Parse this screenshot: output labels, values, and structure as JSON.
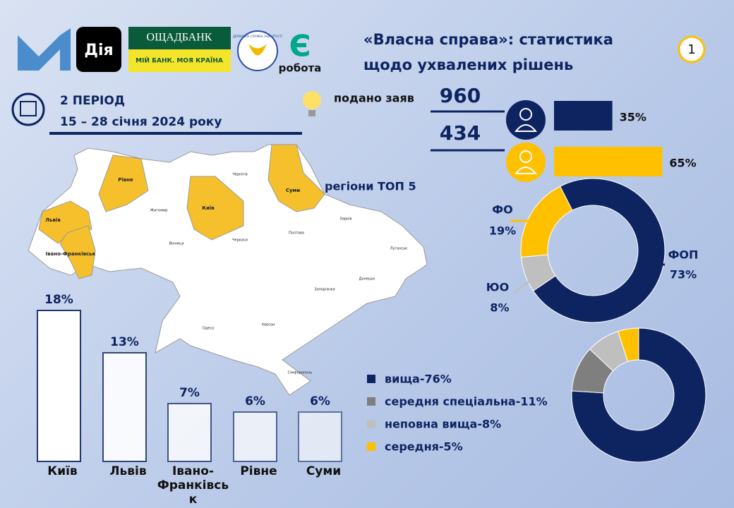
{
  "header": {
    "title": "«Власна справа»: статистика щодо ухвалених рішень",
    "page": "1",
    "logos": {
      "diia": "Дія",
      "bank": "ОЩАДБАНК",
      "bank_slogan": "МІЙ БАНК. МОЯ КРАЇНА",
      "service": "ДЕРЖАВНА СЛУЖБА ЗАЙНЯТОСТІ",
      "work": "робота"
    }
  },
  "period": {
    "label": "2 ПЕРІОД",
    "dates": "15 – 28 січня 2024 року"
  },
  "applications": {
    "label": "подано заяв",
    "submitted": 960,
    "approved": 434
  },
  "map": {
    "label": "регіони ТОП 5",
    "regions": [
      "Львів",
      "Івано-Франківськ",
      "Рівне",
      "Київ",
      "Суми",
      "Чернігів",
      "Житомир",
      "Харків",
      "Полтава",
      "Вінниця",
      "Черкаси",
      "Одеса",
      "Херсон",
      "Запоріжжя",
      "Донецьк",
      "Луганськ",
      "Сімферополь"
    ]
  },
  "chart_data": [
    {
      "type": "bar",
      "categories": [
        "Київ",
        "Львів",
        "Івано-Франківськ",
        "Рівне",
        "Суми"
      ],
      "values": [
        18,
        13,
        7,
        6,
        6
      ],
      "value_labels": [
        "18%",
        "13%",
        "7%",
        "6%",
        "6%"
      ],
      "color": "#23376f"
    },
    {
      "type": "hbar",
      "values": [
        35,
        65
      ],
      "value_labels": [
        "35%",
        "65%"
      ],
      "colors": [
        "#0e2461",
        "#ffc000"
      ]
    },
    {
      "type": "donut",
      "categories": [
        "ФО",
        "ЮО",
        "ФОП"
      ],
      "values": [
        19,
        8,
        73
      ],
      "value_labels": [
        "19%",
        "8%",
        "73%"
      ],
      "colors": [
        "#ffc000",
        "#bfbfbf",
        "#0e2461"
      ]
    },
    {
      "type": "donut",
      "categories": [
        "вища-76%",
        "середня спеціальна-11%",
        "неповна вища-8%",
        "середня-5%"
      ],
      "values": [
        76,
        11,
        8,
        5
      ],
      "colors": [
        "#0e2461",
        "#7f7f7f",
        "#bfbfbf",
        "#ffc000"
      ],
      "legend": "left"
    }
  ]
}
